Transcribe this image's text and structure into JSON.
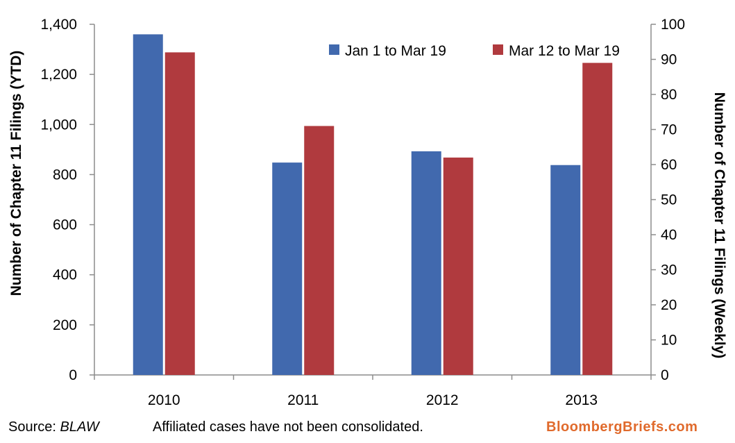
{
  "chart_data": {
    "type": "bar",
    "categories": [
      "2010",
      "2011",
      "2012",
      "2013"
    ],
    "series": [
      {
        "name": "Jan 1 to Mar 19",
        "axis": "left",
        "color": "#4169ae",
        "values": [
          1360,
          848,
          893,
          838
        ]
      },
      {
        "name": "Mar 12 to Mar 19",
        "axis": "right",
        "color": "#b03a3e",
        "values": [
          92,
          71,
          62,
          89
        ]
      }
    ],
    "left_axis": {
      "label": "Number of Chapter 11 Filings    (YTD)",
      "range": [
        0,
        1400
      ],
      "ticks": [
        0,
        200,
        400,
        600,
        800,
        1000,
        1200,
        1400
      ],
      "tick_labels": [
        "0",
        "200",
        "400",
        "600",
        "800",
        "1,000",
        "1,200",
        "1,400"
      ]
    },
    "right_axis": {
      "label": "Number of Chapter 11 Filings     (Weekly)",
      "range": [
        0,
        100
      ],
      "ticks": [
        0,
        10,
        20,
        30,
        40,
        50,
        60,
        70,
        80,
        90,
        100
      ],
      "tick_labels": [
        "0",
        "10",
        "20",
        "30",
        "40",
        "50",
        "60",
        "70",
        "80",
        "90",
        "100"
      ]
    },
    "legend_position": "top-right",
    "grid": false
  },
  "footer": {
    "source_label": "Source: ",
    "source_value": "BLAW",
    "note": "Affiliated cases have not been consolidated.",
    "brand": "BloombergBriefs.com"
  }
}
